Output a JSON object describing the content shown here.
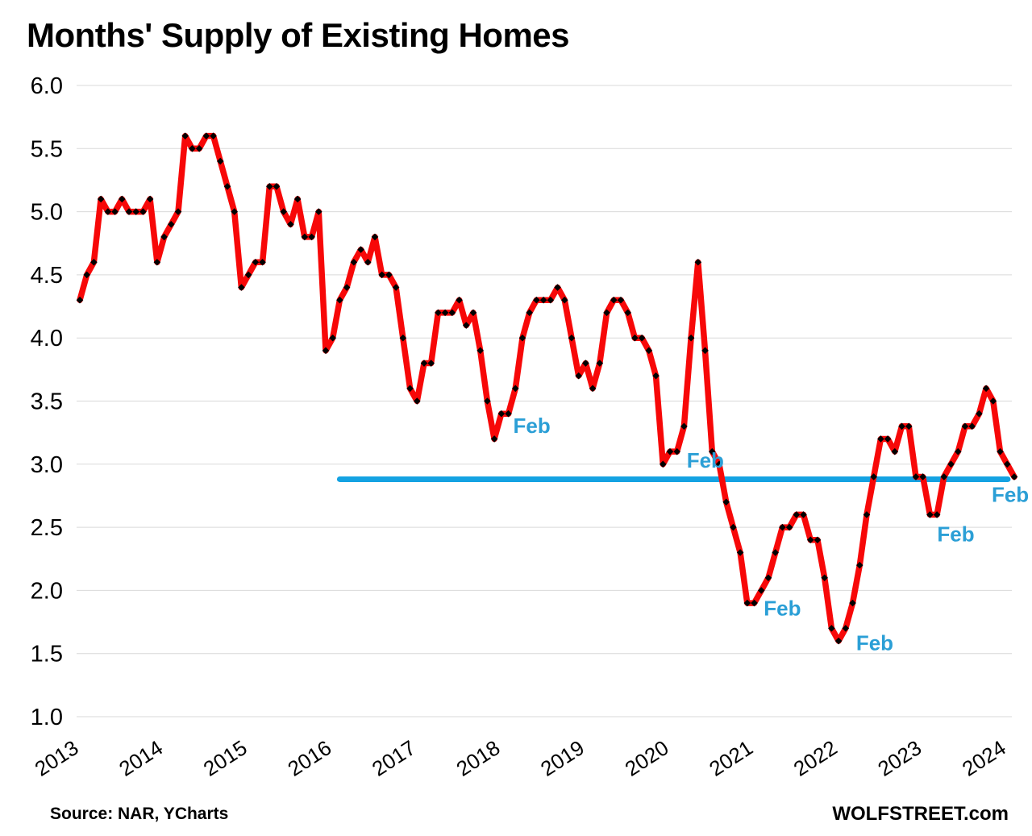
{
  "chart": {
    "title": "Months' Supply of Existing Homes"
  },
  "footer": {
    "source": "Source: NAR, YCharts",
    "brand": "WOLFSTREET.com"
  },
  "chart_data": {
    "type": "line",
    "title": "Months' Supply of Existing Homes",
    "xlabel": "",
    "ylabel": "",
    "ylim": [
      1.0,
      6.0
    ],
    "y_tick_step": 0.5,
    "y_tick_labels": [
      "6.0",
      "5.5",
      "5.0",
      "4.5",
      "4.0",
      "3.5",
      "3.0",
      "2.5",
      "2.0",
      "1.5",
      "1.0"
    ],
    "x_tick_labels": [
      "2013",
      "2014",
      "2015",
      "2016",
      "2017",
      "2018",
      "2019",
      "2020",
      "2021",
      "2022",
      "2023",
      "2024"
    ],
    "grid": "horizontal",
    "grid_color": "#d9d9d9",
    "line_color": "#f70808",
    "marker_color": "#000000",
    "marker_shape": "diamond",
    "annotation_color": "#2b9fd6",
    "reference_line": {
      "value": 2.9,
      "start": "2016-02",
      "end": "2024-02",
      "color": "#14a2e2"
    },
    "series": [
      {
        "name": "Months' supply of existing homes",
        "start": "2013-01",
        "frequency": "monthly",
        "values": [
          4.3,
          4.5,
          4.6,
          5.1,
          5.0,
          5.0,
          5.1,
          5.0,
          5.0,
          5.0,
          5.1,
          4.6,
          4.8,
          4.9,
          5.0,
          5.6,
          5.5,
          5.5,
          5.6,
          5.6,
          5.4,
          5.2,
          5.0,
          4.4,
          4.5,
          4.6,
          4.6,
          5.2,
          5.2,
          5.0,
          4.9,
          5.1,
          4.8,
          4.8,
          5.0,
          3.9,
          4.0,
          4.3,
          4.4,
          4.6,
          4.7,
          4.6,
          4.8,
          4.5,
          4.5,
          4.4,
          4.0,
          3.6,
          3.5,
          3.8,
          3.8,
          4.2,
          4.2,
          4.2,
          4.3,
          4.1,
          4.2,
          3.9,
          3.5,
          3.2,
          3.4,
          3.4,
          3.6,
          4.0,
          4.2,
          4.3,
          4.3,
          4.3,
          4.4,
          4.3,
          4.0,
          3.7,
          3.8,
          3.6,
          3.8,
          4.2,
          4.3,
          4.3,
          4.2,
          4.0,
          4.0,
          3.9,
          3.7,
          3.0,
          3.1,
          3.1,
          3.3,
          4.0,
          4.6,
          3.9,
          3.1,
          3.0,
          2.7,
          2.5,
          2.3,
          1.9,
          1.9,
          2.0,
          2.1,
          2.3,
          2.5,
          2.5,
          2.6,
          2.6,
          2.4,
          2.4,
          2.1,
          1.7,
          1.6,
          1.7,
          1.9,
          2.2,
          2.6,
          2.9,
          3.2,
          3.2,
          3.1,
          3.3,
          3.3,
          2.9,
          2.9,
          2.6,
          2.6,
          2.9,
          3.0,
          3.1,
          3.3,
          3.3,
          3.4,
          3.6,
          3.5,
          3.1,
          3.0,
          2.9
        ]
      }
    ],
    "annotations": [
      {
        "text": "Feb",
        "year": 2018,
        "month": 2,
        "value": 3.4
      },
      {
        "text": "Feb",
        "year": 2020,
        "month": 2,
        "value": 3.1
      },
      {
        "text": "Feb",
        "year": 2021,
        "month": 2,
        "value": 2.0
      },
      {
        "text": "Feb",
        "year": 2022,
        "month": 2,
        "value": 1.7
      },
      {
        "text": "Feb",
        "year": 2023,
        "month": 2,
        "value": 2.6
      },
      {
        "text": "Feb",
        "year": 2024,
        "month": 2,
        "value": 2.9
      }
    ]
  }
}
